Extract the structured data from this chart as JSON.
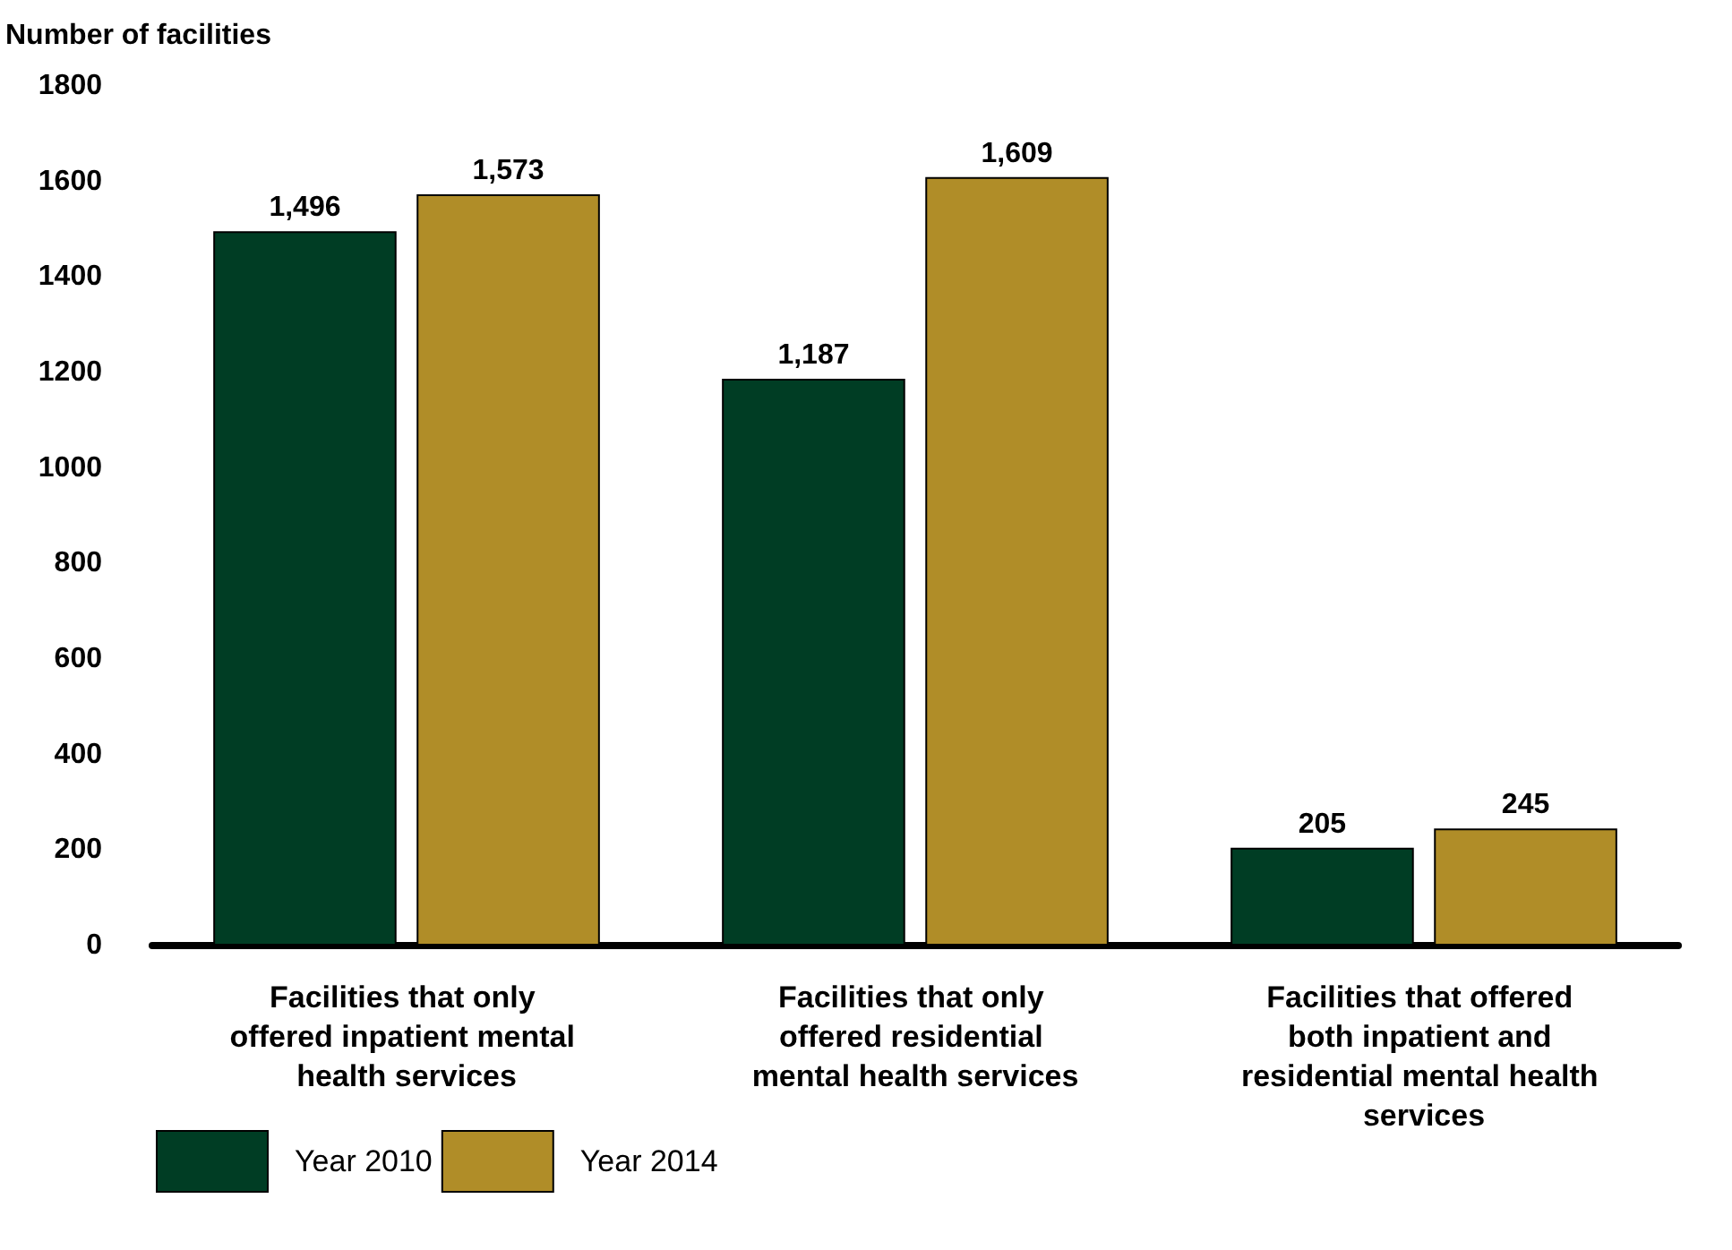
{
  "chart_data": {
    "type": "bar",
    "ylabel": "Number of facilities",
    "categories": [
      "Facilities that only offered inpatient mental health services",
      "Facilities that only offered residential mental health services",
      "Facilities that offered both inpatient and residential mental health services"
    ],
    "series": [
      {
        "name": "Year 2010",
        "color": "#003d24",
        "values": [
          1496,
          1187,
          205
        ],
        "value_labels": [
          "1,496",
          "1,187",
          "205"
        ]
      },
      {
        "name": "Year 2014",
        "color": "#b08d28",
        "values": [
          1573,
          1609,
          245
        ],
        "value_labels": [
          "1,573",
          "1,609",
          "245"
        ]
      }
    ],
    "ylim": [
      0,
      1800
    ],
    "yticks": [
      0,
      200,
      400,
      600,
      800,
      1000,
      1200,
      1400,
      1600,
      1800
    ],
    "grid": false,
    "legend": "bottom left"
  }
}
